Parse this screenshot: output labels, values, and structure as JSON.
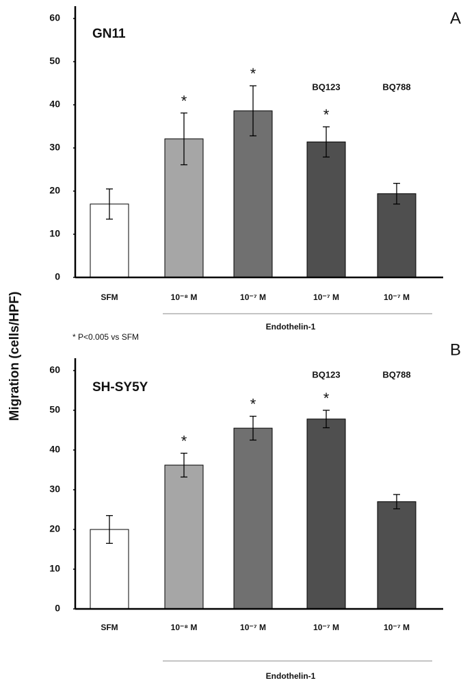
{
  "y_label": "Migration (cells/HPF)",
  "footnote": "* P<0.005 vs SFM",
  "chart_data": [
    {
      "type": "bar",
      "panel": "A",
      "title": "GN11",
      "categories": [
        "SFM",
        "10⁻⁸ M",
        "10⁻⁷ M",
        "10⁻⁷ M",
        "10⁻⁷ M"
      ],
      "values": [
        17,
        32.1,
        38.6,
        31.4,
        19.4
      ],
      "errors": [
        3.5,
        6,
        5.8,
        3.5,
        2.4
      ],
      "colors": [
        "#ffffff",
        "#a6a6a6",
        "#707070",
        "#4f4f4f",
        "#4f4f4f"
      ],
      "significance": [
        null,
        "*",
        "*",
        "*",
        null
      ],
      "antagonists": [
        null,
        null,
        null,
        "BQ123",
        "BQ788"
      ],
      "group_label": "Endothelin-1",
      "ylim": [
        0,
        60
      ],
      "yticks": [
        0,
        10,
        20,
        30,
        40,
        50,
        60
      ]
    },
    {
      "type": "bar",
      "panel": "B",
      "title": "SH-SY5Y",
      "categories": [
        "SFM",
        "10⁻⁸ M",
        "10⁻⁷ M",
        "10⁻⁷ M",
        "10⁻⁷ M"
      ],
      "values": [
        20,
        36.2,
        45.5,
        47.8,
        27
      ],
      "errors": [
        3.5,
        3,
        3,
        2.2,
        1.8
      ],
      "colors": [
        "#ffffff",
        "#a6a6a6",
        "#707070",
        "#4f4f4f",
        "#4f4f4f"
      ],
      "significance": [
        null,
        "*",
        "*",
        "*",
        null
      ],
      "antagonists": [
        null,
        null,
        null,
        "BQ123",
        "BQ788"
      ],
      "group_label": "Endothelin-1",
      "ylim": [
        0,
        60
      ],
      "yticks": [
        0,
        10,
        20,
        30,
        40,
        50,
        60
      ]
    }
  ]
}
